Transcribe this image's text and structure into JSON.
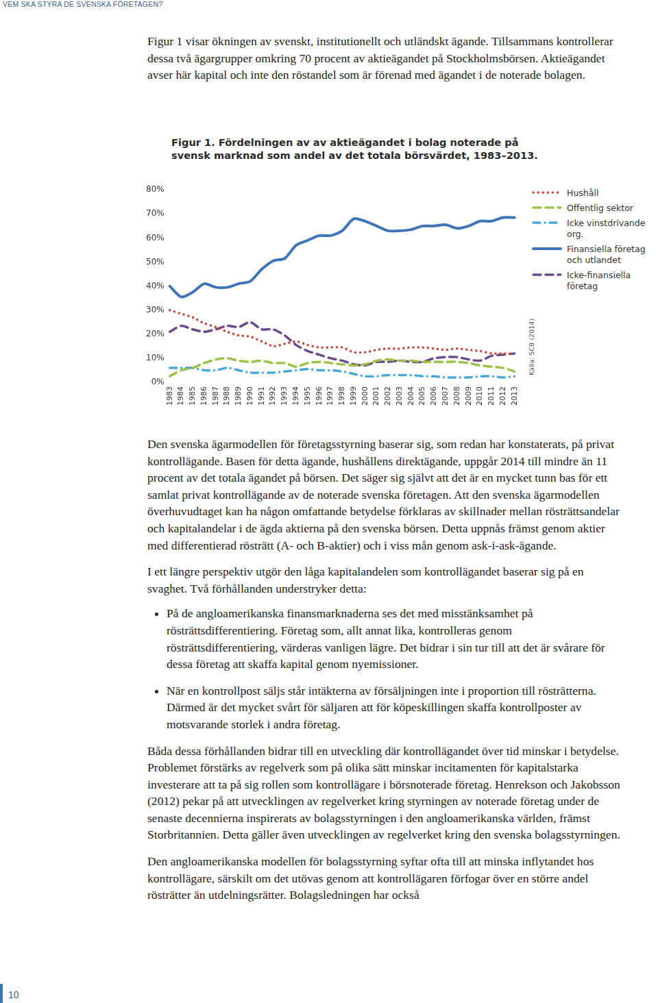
{
  "header": "VEM SKA STYRA DE SVENSKA FÖRETAGEN?",
  "intro": "Figur 1 visar ökningen av svenskt, institutionellt och utländskt ägande. Tillsammans kontrollerar dessa två ägargrupper omkring 70 procent av aktieägandet på Stockholmsbörsen. Aktieägandet avser här kapital och inte den röstandel som är förenad med ägandet i de noterade bolagen.",
  "chart_data": {
    "type": "line",
    "title": "Figur 1. Fördelningen av av aktieägandet i bolag noterade på svensk marknad som andel av det totala börsvärdet, 1983–2013.",
    "source": "Källa: SCB (2014)",
    "categories": [
      "1983",
      "1984",
      "1985",
      "1986",
      "1987",
      "1988",
      "1989",
      "1990",
      "1991",
      "1992",
      "1993",
      "1994",
      "1995",
      "1996",
      "1997",
      "1998",
      "1999",
      "2000",
      "2001",
      "2002",
      "2003",
      "2004",
      "2005",
      "2006",
      "2007",
      "2008",
      "2009",
      "2010",
      "2011",
      "2012",
      "2013"
    ],
    "ylim": [
      0,
      80
    ],
    "yticks": [
      {
        "value": 0,
        "label": "0%"
      },
      {
        "value": 10,
        "label": "10%"
      },
      {
        "value": 20,
        "label": "20%"
      },
      {
        "value": 30,
        "label": "30%"
      },
      {
        "value": 40,
        "label": "40%"
      },
      {
        "value": 50,
        "label": "50%"
      },
      {
        "value": 60,
        "label": "60%"
      },
      {
        "value": 70,
        "label": "70%"
      },
      {
        "value": 80,
        "label": "80%"
      }
    ],
    "grid": false,
    "legend": "right",
    "series": [
      {
        "name": "Hushåll",
        "color": "#c8443a",
        "line_style": "dotted",
        "values": [
          30,
          28.5,
          27,
          24.5,
          23,
          21,
          19.5,
          19,
          17,
          15,
          16,
          17,
          15.5,
          14.5,
          14.5,
          14.5,
          12.5,
          12.5,
          13.5,
          14,
          14,
          14.5,
          14.5,
          14,
          13.5,
          14,
          13.5,
          13,
          12,
          12,
          12
        ]
      },
      {
        "name": "Offentlig sektor",
        "color": "#9cc24a",
        "line_style": "dashed",
        "values": [
          2.5,
          5,
          6,
          8,
          9.5,
          10,
          9,
          8.5,
          9,
          8,
          8,
          6.5,
          8,
          8.5,
          8,
          7.5,
          7,
          7.5,
          9,
          9.5,
          9,
          9,
          8.5,
          8.5,
          8.5,
          8.5,
          8,
          7,
          6.5,
          6,
          4.5
        ]
      },
      {
        "name": "Icke vinstdrivande org.",
        "color": "#4aa8d8",
        "line_style": "dash-dot",
        "values": [
          6,
          6,
          6,
          5,
          5,
          6,
          5,
          4,
          4,
          4,
          4.5,
          5,
          5.5,
          5,
          5,
          4.5,
          3.5,
          2.5,
          2.5,
          3,
          3,
          3,
          2.5,
          2.5,
          2,
          2,
          2,
          2.5,
          2.5,
          2,
          2.5
        ]
      },
      {
        "name": "Finansiella företag och utlandet",
        "color": "#3e74b8",
        "line_style": "solid",
        "values": [
          40,
          35.5,
          37.5,
          41,
          39.5,
          39.5,
          41,
          42,
          47,
          50.5,
          51.5,
          57,
          59,
          61,
          61,
          63,
          68,
          67,
          65,
          63,
          63,
          63.5,
          65,
          65,
          65.5,
          64,
          65,
          67,
          67,
          68.5,
          68.5
        ]
      },
      {
        "name": "Icke-finansiella företag",
        "color": "#6b4a8a",
        "line_style": "dashed",
        "values": [
          21,
          23.5,
          22,
          21,
          22,
          23.5,
          23,
          25,
          22,
          22,
          19.5,
          15.5,
          13,
          11.5,
          10,
          9,
          7.5,
          7,
          8.5,
          8.5,
          9,
          8.5,
          8.5,
          10,
          10.5,
          10.5,
          9.5,
          9,
          11,
          11.5,
          12
        ]
      }
    ]
  },
  "paragraphs_before_list": [
    "Den svenska ägarmodellen för företagsstyrning baserar sig, som redan har konstaterats, på privat kontrollägande. Basen för detta ägande, hushållens direktägande, uppgår 2014 till mindre än 11 procent av det totala ägandet på börsen. Det säger sig självt att det är en mycket tunn bas för ett samlat privat kontrollägande av de noterade svenska företagen. Att den svenska ägarmodellen överhuvudtaget kan ha någon omfattande betydelse förklaras av skillnader mellan rösträttsandelar och kapitalandelar i de ägda aktierna på den svenska börsen. Detta uppnås främst genom aktier med differentierad rösträtt (A- och B-aktier) och i viss mån genom ask-i-ask-ägande.",
    "I ett längre perspektiv utgör den låga kapitalandelen som kontrollägandet baserar sig på en svaghet. Två förhållanden understryker detta:"
  ],
  "list": [
    "På de angloamerikanska finansmarknaderna ses det med misstänksamhet på rösträttsdifferentiering. Företag som, allt annat lika, kontrolleras genom rösträttsdifferentiering, värderas vanligen lägre. Det bidrar i sin tur till att det är svårare för dessa företag att skaffa kapital genom nyemissioner.",
    "När en kontrollpost säljs står intäkterna av försäljningen inte i proportion till rösträtterna. Därmed är det mycket svårt för säljaren att för köpeskillingen skaffa kontrollposter av motsvarande storlek i andra företag."
  ],
  "paragraphs_after_list": [
    "Båda dessa förhållanden bidrar till en utveckling där kontrollägandet över tid minskar i betydelse. Problemet förstärks av regelverk som på olika sätt minskar incitamenten för kapitalstarka investerare att ta på sig rollen som kontrollägare i börsnoterade företag. Henrekson och Jakobsson (2012) pekar på att utvecklingen av regelverket kring styrningen av noterade företag under de senaste decennierna inspirerats av bolagsstyrningen i den angloamerikanska världen, främst Storbritannien. Detta gäller även utvecklingen av regelverket kring den svenska bolagsstyrningen.",
    "Den angloamerikanska modellen för bolagsstyrning syftar ofta till att minska inflytandet hos kontrollägare, särskilt om det utövas genom att kontrollägaren förfogar över en större andel rösträtter än utdelningsrätter. Bolagsledningen har också"
  ],
  "page_number": "10"
}
